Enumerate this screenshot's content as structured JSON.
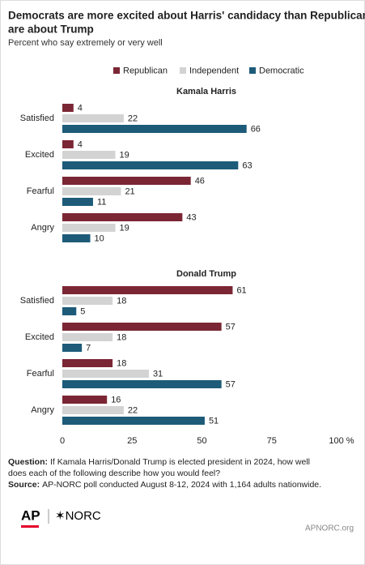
{
  "chart_data": {
    "type": "bar",
    "orientation": "horizontal",
    "title": [
      "Democrats are more excited about Harris' candidacy than Republicans",
      "are about Trump"
    ],
    "subtitle": "Percent who say extremely or very well",
    "series": [
      {
        "name": "Republican",
        "color": "#7b2634"
      },
      {
        "name": "Independent",
        "color": "#d3d3d3"
      },
      {
        "name": "Democratic",
        "color": "#1d5b79"
      }
    ],
    "xlim": [
      0,
      100
    ],
    "xticks": [
      0,
      25,
      50,
      75,
      {
        "value": 100,
        "label": "100 %"
      }
    ],
    "panels": [
      {
        "title": "Kamala Harris",
        "categories": [
          "Satisfied",
          "Excited",
          "Fearful",
          "Angry"
        ],
        "values": [
          [
            4,
            4,
            46,
            43
          ],
          [
            22,
            19,
            21,
            19
          ],
          [
            66,
            63,
            11,
            10
          ]
        ]
      },
      {
        "title": "Donald Trump",
        "categories": [
          "Satisfied",
          "Excited",
          "Fearful",
          "Angry"
        ],
        "values": [
          [
            61,
            57,
            18,
            16
          ],
          [
            18,
            18,
            31,
            22
          ],
          [
            5,
            7,
            57,
            51
          ]
        ]
      }
    ]
  },
  "notes": {
    "question_label": "Question:",
    "question": [
      "If Kamala Harris/Donald Trump is elected president in 2024, how well",
      "does each of the following describe how you would feel?"
    ],
    "source_label": "Source:",
    "source": "AP-NORC poll conducted August 8-12, 2024 with 1,164 adults nationwide."
  },
  "branding": {
    "logo_ap": "AP",
    "logo_norc": "✶NORC",
    "url": "APNORC.org"
  }
}
